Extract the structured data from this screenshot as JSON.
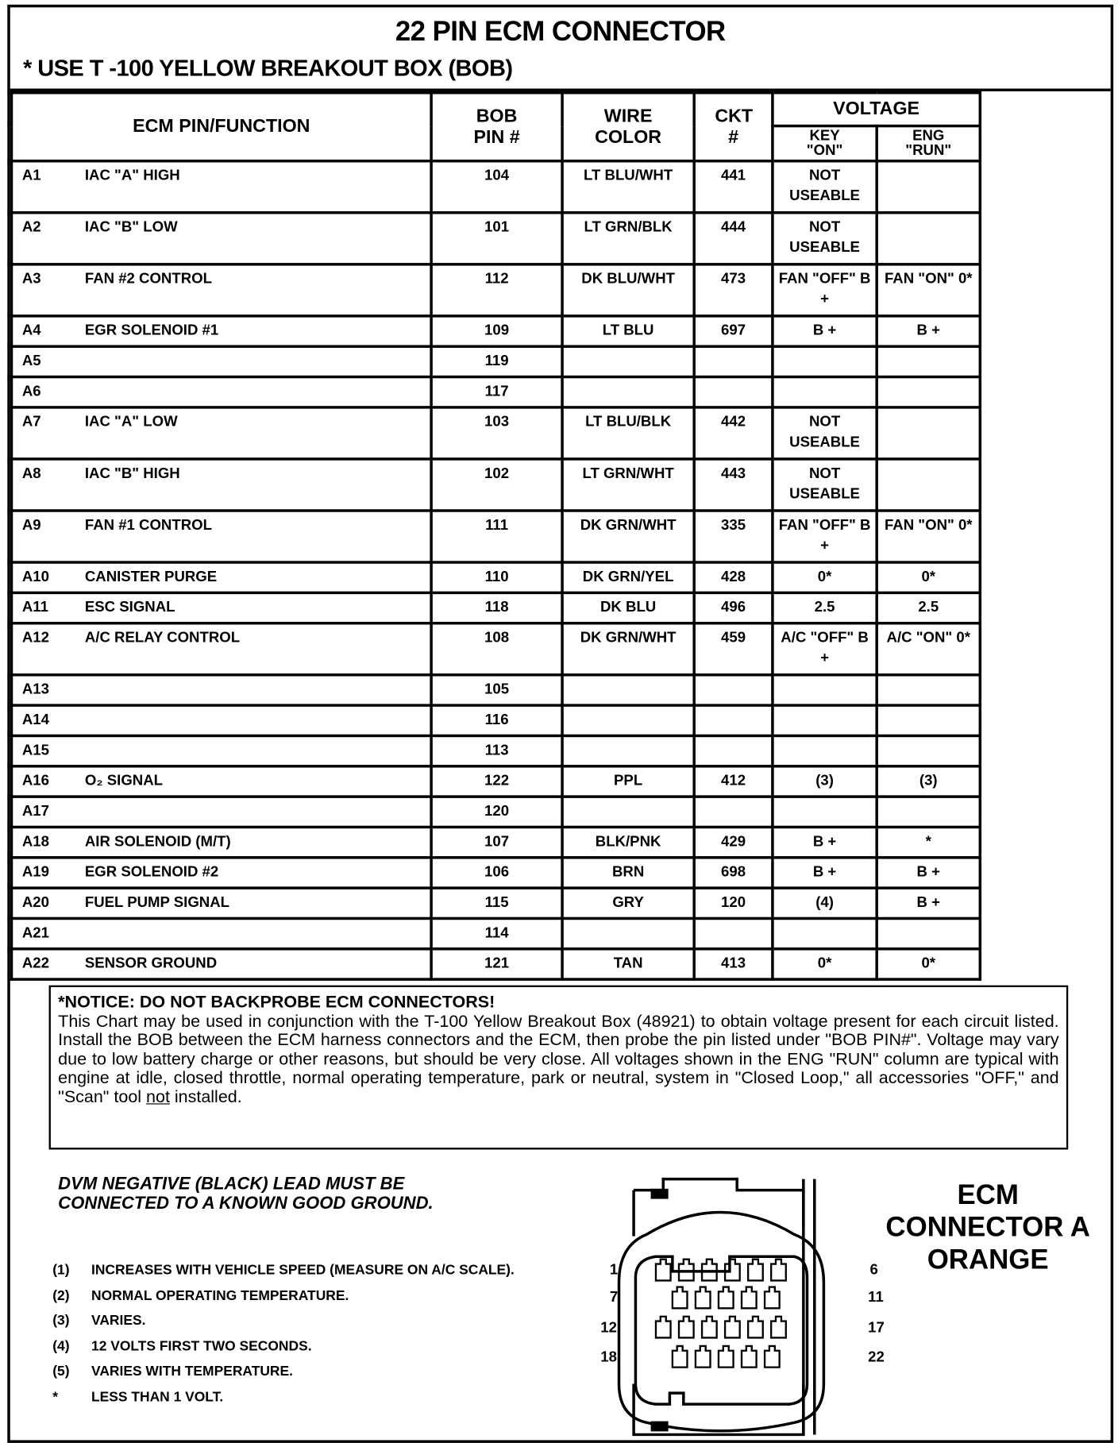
{
  "header": {
    "title": "22 PIN ECM CONNECTOR",
    "subtitle": "*  USE T -100 YELLOW BREAKOUT BOX (BOB)"
  },
  "table": {
    "columns": {
      "pin_function": "ECM PIN/FUNCTION",
      "bob_pin": "BOB PIN #",
      "wire_color": "WIRE COLOR",
      "ckt": "CKT #",
      "voltage": "VOLTAGE",
      "key_on": "KEY \"ON\"",
      "eng_run": "ENG \"RUN\""
    },
    "rows": [
      {
        "pin": "A1",
        "function": "IAC \"A\" HIGH",
        "bob": "104",
        "wire": "LT BLU/WHT",
        "ckt": "441",
        "key_on": "NOT USEABLE",
        "eng_run": "",
        "tall": true
      },
      {
        "pin": "A2",
        "function": "IAC \"B\" LOW",
        "bob": "101",
        "wire": "LT GRN/BLK",
        "ckt": "444",
        "key_on": "NOT USEABLE",
        "eng_run": "",
        "tall": true
      },
      {
        "pin": "A3",
        "function": "FAN #2 CONTROL",
        "bob": "112",
        "wire": "DK BLU/WHT",
        "ckt": "473",
        "key_on": "FAN \"OFF\" B +",
        "eng_run": "FAN \"ON\" 0*",
        "tall": true
      },
      {
        "pin": "A4",
        "function": "EGR SOLENOID #1",
        "bob": "109",
        "wire": "LT BLU",
        "ckt": "697",
        "key_on": "B +",
        "eng_run": "B +",
        "tall": false
      },
      {
        "pin": "A5",
        "function": "",
        "bob": "119",
        "wire": "",
        "ckt": "",
        "key_on": "",
        "eng_run": "",
        "tall": false
      },
      {
        "pin": "A6",
        "function": "",
        "bob": "117",
        "wire": "",
        "ckt": "",
        "key_on": "",
        "eng_run": "",
        "tall": false
      },
      {
        "pin": "A7",
        "function": "IAC \"A\" LOW",
        "bob": "103",
        "wire": "LT BLU/BLK",
        "ckt": "442",
        "key_on": "NOT USEABLE",
        "eng_run": "",
        "tall": true
      },
      {
        "pin": "A8",
        "function": "IAC \"B\" HIGH",
        "bob": "102",
        "wire": "LT GRN/WHT",
        "ckt": "443",
        "key_on": "NOT USEABLE",
        "eng_run": "",
        "tall": true
      },
      {
        "pin": "A9",
        "function": "FAN #1 CONTROL",
        "bob": "111",
        "wire": "DK GRN/WHT",
        "ckt": "335",
        "key_on": "FAN \"OFF\" B +",
        "eng_run": "FAN \"ON\" 0*",
        "tall": true
      },
      {
        "pin": "A10",
        "function": "CANISTER PURGE",
        "bob": "110",
        "wire": "DK GRN/YEL",
        "ckt": "428",
        "key_on": "0*",
        "eng_run": "0*",
        "tall": false
      },
      {
        "pin": "A11",
        "function": "ESC SIGNAL",
        "bob": "118",
        "wire": "DK BLU",
        "ckt": "496",
        "key_on": "2.5",
        "eng_run": "2.5",
        "tall": false
      },
      {
        "pin": "A12",
        "function": "A/C RELAY CONTROL",
        "bob": "108",
        "wire": "DK GRN/WHT",
        "ckt": "459",
        "key_on": "A/C \"OFF\" B +",
        "eng_run": "A/C \"ON\" 0*",
        "tall": true
      },
      {
        "pin": "A13",
        "function": "",
        "bob": "105",
        "wire": "",
        "ckt": "",
        "key_on": "",
        "eng_run": "",
        "tall": false
      },
      {
        "pin": "A14",
        "function": "",
        "bob": "116",
        "wire": "",
        "ckt": "",
        "key_on": "",
        "eng_run": "",
        "tall": false
      },
      {
        "pin": "A15",
        "function": "",
        "bob": "113",
        "wire": "",
        "ckt": "",
        "key_on": "",
        "eng_run": "",
        "tall": false
      },
      {
        "pin": "A16",
        "function": "O₂ SIGNAL",
        "bob": "122",
        "wire": "PPL",
        "ckt": "412",
        "key_on": "(3)",
        "eng_run": "(3)",
        "tall": false
      },
      {
        "pin": "A17",
        "function": "",
        "bob": "120",
        "wire": "",
        "ckt": "",
        "key_on": "",
        "eng_run": "",
        "tall": false
      },
      {
        "pin": "A18",
        "function": "AIR SOLENOID (M/T)",
        "bob": "107",
        "wire": "BLK/PNK",
        "ckt": "429",
        "key_on": "B +",
        "eng_run": "*",
        "tall": false
      },
      {
        "pin": "A19",
        "function": "EGR SOLENOID #2",
        "bob": "106",
        "wire": "BRN",
        "ckt": "698",
        "key_on": "B +",
        "eng_run": "B +",
        "tall": false
      },
      {
        "pin": "A20",
        "function": "FUEL PUMP SIGNAL",
        "bob": "115",
        "wire": "GRY",
        "ckt": "120",
        "key_on": "(4)",
        "eng_run": "B +",
        "tall": false
      },
      {
        "pin": "A21",
        "function": "",
        "bob": "114",
        "wire": "",
        "ckt": "",
        "key_on": "",
        "eng_run": "",
        "tall": false
      },
      {
        "pin": "A22",
        "function": "SENSOR GROUND",
        "bob": "121",
        "wire": "TAN",
        "ckt": "413",
        "key_on": "0*",
        "eng_run": "0*",
        "tall": false
      }
    ]
  },
  "notice": {
    "heading": "*NOTICE:    DO NOT BACKPROBE ECM CONNECTORS!",
    "body_before": "This Chart may be used in conjunction with the T-100 Yellow Breakout Box (48921) to obtain voltage present for each circuit listed.  Install the BOB between the ECM harness connectors and the ECM, then probe the pin listed under \"BOB PIN#\".  Voltage may vary due to low battery charge or other reasons, but should be very close.  All voltages shown in the ENG \"RUN\" column are typical with engine at idle, closed throttle, normal operating temperature, park or neutral, system in \"Closed Loop,\" all accessories \"OFF,\" and \"Scan\" tool ",
    "body_underlined": "not",
    "body_after": " installed."
  },
  "dvm_warning": [
    "DVM NEGATIVE (BLACK) LEAD MUST BE",
    "CONNECTED TO A KNOWN GOOD GROUND."
  ],
  "notes": [
    {
      "key": "(1)",
      "text": "INCREASES WITH VEHICLE SPEED (MEASURE ON A/C SCALE)."
    },
    {
      "key": "(2)",
      "text": "NORMAL OPERATING TEMPERATURE."
    },
    {
      "key": "(3)",
      "text": "VARIES."
    },
    {
      "key": "(4)",
      "text": "12 VOLTS FIRST TWO SECONDS."
    },
    {
      "key": "(5)",
      "text": "VARIES WITH TEMPERATURE."
    },
    {
      "key": "*",
      "text": "LESS THAN 1 VOLT."
    }
  ],
  "connector": {
    "label": [
      "ECM",
      "CONNECTOR A",
      "ORANGE"
    ],
    "left_pin_labels": [
      "1",
      "7",
      "12",
      "18"
    ],
    "right_pin_labels": [
      "6",
      "11",
      "17",
      "22"
    ]
  }
}
